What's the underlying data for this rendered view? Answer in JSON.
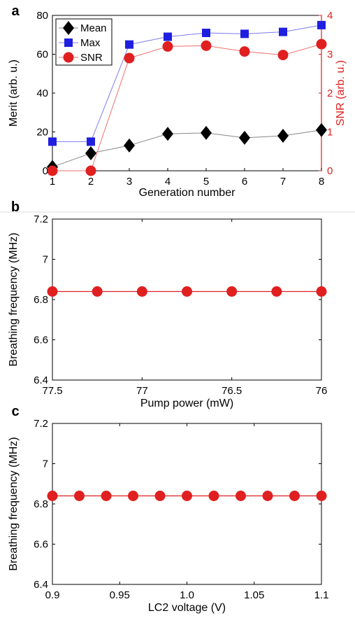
{
  "colors": {
    "mean": "#000000",
    "max": "#1f1fe0",
    "snr": "#e02020",
    "axis": "#000000"
  },
  "chart_data": [
    {
      "panel": "a",
      "type": "line",
      "xlabel": "Generation number",
      "ylabel": "Merit  (arb. u.)",
      "y2label": "SNR  (arb. u.)",
      "xlim": [
        1,
        8
      ],
      "ylim": [
        0,
        80
      ],
      "y2lim": [
        0,
        4
      ],
      "xticks": [
        "1",
        "2",
        "3",
        "4",
        "5",
        "6",
        "7",
        "8"
      ],
      "yticks": [
        "0",
        "20",
        "40",
        "60",
        "80"
      ],
      "y2ticks": [
        "0",
        "1",
        "2",
        "3",
        "4"
      ],
      "legend_position": "top-left",
      "x": [
        1,
        2,
        3,
        4,
        5,
        6,
        7,
        8
      ],
      "series": [
        {
          "name": "Mean",
          "axis": "left",
          "marker": "diamond",
          "values": [
            2,
            9,
            13,
            19,
            19.5,
            17,
            18,
            21
          ]
        },
        {
          "name": "Max",
          "axis": "left",
          "marker": "square",
          "values": [
            15,
            15,
            65,
            69,
            71,
            70.5,
            71.5,
            75
          ]
        },
        {
          "name": "SNR",
          "axis": "right",
          "marker": "circle",
          "values": [
            0,
            0,
            2.9,
            3.2,
            3.22,
            3.07,
            2.98,
            3.26
          ]
        }
      ]
    },
    {
      "panel": "b",
      "type": "line",
      "xlabel": "Pump power (mW)",
      "ylabel": "Breathing frequency (MHz)",
      "xlim": [
        77.5,
        76
      ],
      "ylim": [
        6.4,
        7.2
      ],
      "xticks": [
        "77.5",
        "77",
        "76.5",
        "76"
      ],
      "xtick_values": [
        77.5,
        77,
        76.5,
        76
      ],
      "yticks": [
        "6.4",
        "6.6",
        "6.8",
        "7",
        "7.2"
      ],
      "ytick_values": [
        6.4,
        6.6,
        6.8,
        7.0,
        7.2
      ],
      "x": [
        77.5,
        77.25,
        77.0,
        76.75,
        76.5,
        76.25,
        76.0
      ],
      "values": [
        6.84,
        6.84,
        6.84,
        6.84,
        6.84,
        6.84,
        6.84
      ]
    },
    {
      "panel": "c",
      "type": "line",
      "xlabel": "LC2 voltage (V)",
      "ylabel": "Breathing frequency (MHz)",
      "xlim": [
        0.9,
        1.1
      ],
      "ylim": [
        6.4,
        7.2
      ],
      "xticks": [
        "0.9",
        "0.95",
        "1.0",
        "1.05",
        "1.1"
      ],
      "xtick_values": [
        0.9,
        0.95,
        1.0,
        1.05,
        1.1
      ],
      "yticks": [
        "6.4",
        "6.6",
        "6.8",
        "7",
        "7.2"
      ],
      "ytick_values": [
        6.4,
        6.6,
        6.8,
        7.0,
        7.2
      ],
      "x": [
        0.9,
        0.92,
        0.94,
        0.96,
        0.98,
        1.0,
        1.02,
        1.04,
        1.06,
        1.08,
        1.1
      ],
      "values": [
        6.84,
        6.84,
        6.84,
        6.84,
        6.84,
        6.84,
        6.84,
        6.84,
        6.84,
        6.84,
        6.84
      ]
    }
  ]
}
